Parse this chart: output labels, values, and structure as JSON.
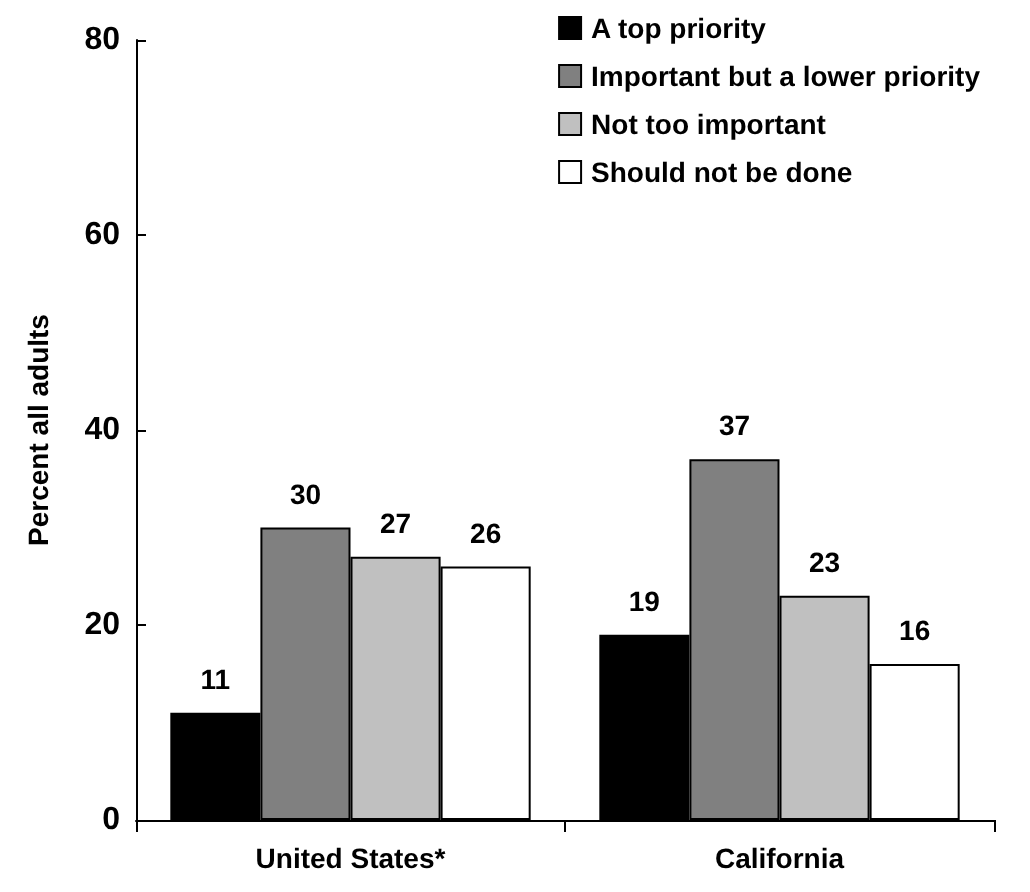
{
  "chart_data": {
    "type": "bar",
    "ylabel": "Percent all adults",
    "categories": [
      "United States*",
      "California"
    ],
    "series": [
      {
        "name": "A top priority",
        "color": "#000000",
        "values": [
          11,
          19
        ]
      },
      {
        "name": "Important but a lower priority",
        "color": "#808080",
        "values": [
          30,
          37
        ]
      },
      {
        "name": "Not too important",
        "color": "#c0c0c0",
        "values": [
          27,
          23
        ]
      },
      {
        "name": "Should not be done",
        "color": "#ffffff",
        "values": [
          26,
          16
        ]
      }
    ],
    "ylim": [
      0,
      80
    ],
    "yticks": [
      0,
      20,
      40,
      60,
      80
    ],
    "grid": false,
    "legend": "top right",
    "data_labels": true
  }
}
